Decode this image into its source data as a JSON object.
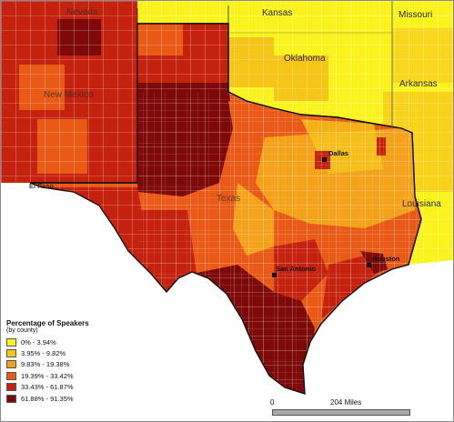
{
  "map": {
    "states": [
      {
        "id": "nevada",
        "label": "Nevada"
      },
      {
        "id": "kansas",
        "label": "Kansas"
      },
      {
        "id": "missouri",
        "label": "Missouri"
      },
      {
        "id": "oklahoma",
        "label": "Oklahoma"
      },
      {
        "id": "arkansas",
        "label": "Arkansas"
      },
      {
        "id": "new-mexico",
        "label": "New Mexico"
      },
      {
        "id": "texas",
        "label": "Texas"
      },
      {
        "id": "louisiana",
        "label": "Louisiana"
      },
      {
        "id": "el-paso",
        "label": "El Paso"
      }
    ],
    "cities": [
      {
        "id": "dallas",
        "label": "Dallas"
      },
      {
        "id": "houston",
        "label": "Houston"
      },
      {
        "id": "san-antonio",
        "label": "San Antonio"
      }
    ]
  },
  "legend": {
    "title": "Percentage of Speakers",
    "subtitle": "(by county)",
    "items": [
      {
        "label": "0% - 3.94%",
        "color": "#fbf31e"
      },
      {
        "label": "3.95% - 9.82%",
        "color": "#f5c518"
      },
      {
        "label": "9.83% - 19.38%",
        "color": "#f4a21a"
      },
      {
        "label": "19.39% - 33.42%",
        "color": "#ea5a17"
      },
      {
        "label": "33.43% - 61.87%",
        "color": "#c4210f"
      },
      {
        "label": "61.88% - 91.35%",
        "color": "#7e0909"
      }
    ]
  },
  "scale_bar": {
    "start": "0",
    "end": "204 Miles"
  }
}
